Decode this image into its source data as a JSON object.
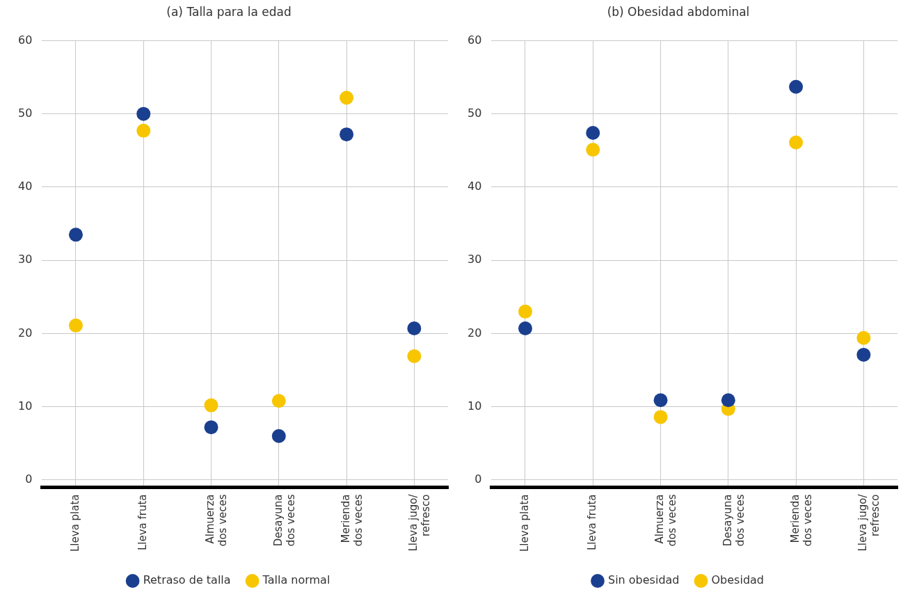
{
  "chart_data": [
    {
      "type": "scatter",
      "title": "(a) Talla para la edad",
      "categories": [
        "Lleva plata",
        "Lleva fruta",
        "Almuerza\ndos veces",
        "Desayuna\ndos veces",
        "Merienda\ndos veces",
        "Lleva jugo/\nrefresco"
      ],
      "series": [
        {
          "name": "Retraso de talla",
          "color": "#1b3f8f",
          "values": [
            33.5,
            50.0,
            7.2,
            6.0,
            47.2,
            20.7
          ]
        },
        {
          "name": "Talla normal",
          "color": "#f7c600",
          "values": [
            21.1,
            47.7,
            10.2,
            10.8,
            52.2,
            16.9
          ]
        }
      ],
      "ylim": [
        -1,
        60
      ],
      "yticks": [
        0,
        10,
        20,
        30,
        40,
        50,
        60
      ],
      "grid": true,
      "legend": "bottom",
      "marker": "circle"
    },
    {
      "type": "scatter",
      "title": "(b) Obesidad abdominal",
      "categories": [
        "Lleva plata",
        "Lleva fruta",
        "Almuerza\ndos veces",
        "Desayuna\ndos veces",
        "Merienda\ndos veces",
        "Lleva jugo/\nrefresco"
      ],
      "series": [
        {
          "name": "Sin obesidad",
          "color": "#1b3f8f",
          "values": [
            20.7,
            47.4,
            10.9,
            10.9,
            53.7,
            17.1
          ]
        },
        {
          "name": "Obesidad",
          "color": "#f7c600",
          "values": [
            23.0,
            45.1,
            8.6,
            9.7,
            46.1,
            19.4
          ]
        }
      ],
      "ylim": [
        -1,
        60
      ],
      "yticks": [
        0,
        10,
        20,
        30,
        40,
        50,
        60
      ],
      "grid": true,
      "legend": "bottom",
      "marker": "circle"
    }
  ]
}
